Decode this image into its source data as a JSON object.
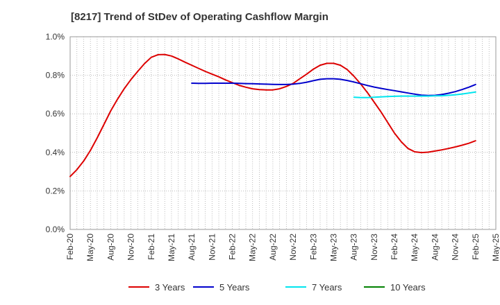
{
  "chart_data": {
    "type": "line",
    "title": "[8217]  Trend of StDev of Operating Cashflow Margin",
    "xlabel": "",
    "ylabel": "",
    "x_tick_labels": [
      "Feb-20",
      "May-20",
      "Aug-20",
      "Nov-20",
      "Feb-21",
      "May-21",
      "Aug-21",
      "Nov-21",
      "Feb-22",
      "May-22",
      "Aug-22",
      "Nov-22",
      "Feb-23",
      "May-23",
      "Aug-23",
      "Nov-23",
      "Feb-24",
      "May-24",
      "Aug-24",
      "Nov-24",
      "Feb-25",
      "May-25"
    ],
    "y_tick_labels": [
      "0.0%",
      "0.2%",
      "0.4%",
      "0.6%",
      "0.8%",
      "1.0%"
    ],
    "ylim": [
      0,
      1.0
    ],
    "y_unit": "%",
    "grid": true,
    "legend_position": "bottom",
    "series": [
      {
        "name": "3 Years",
        "color": "#dd0000",
        "x": [
          "Feb-20",
          "Mar-20",
          "Apr-20",
          "May-20",
          "Jun-20",
          "Jul-20",
          "Aug-20",
          "Sep-20",
          "Oct-20",
          "Nov-20",
          "Dec-20",
          "Jan-21",
          "Feb-21",
          "Mar-21",
          "Apr-21",
          "May-21",
          "Jun-21",
          "Jul-21",
          "Aug-21",
          "Sep-21",
          "Oct-21",
          "Nov-21",
          "Dec-21",
          "Jan-22",
          "Feb-22",
          "Mar-22",
          "Apr-22",
          "May-22",
          "Jun-22",
          "Jul-22",
          "Aug-22",
          "Sep-22",
          "Oct-22",
          "Nov-22",
          "Dec-22",
          "Jan-23",
          "Feb-23",
          "Mar-23",
          "Apr-23",
          "May-23",
          "Jun-23",
          "Jul-23",
          "Aug-23",
          "Sep-23",
          "Oct-23",
          "Nov-23",
          "Dec-23",
          "Jan-24",
          "Feb-24",
          "Mar-24",
          "Apr-24",
          "May-24",
          "Jun-24",
          "Jul-24",
          "Aug-24",
          "Sep-24",
          "Oct-24",
          "Nov-24",
          "Dec-24",
          "Jan-25",
          "Feb-25"
        ],
        "values": [
          0.275,
          0.31,
          0.355,
          0.41,
          0.475,
          0.545,
          0.615,
          0.675,
          0.73,
          0.778,
          0.82,
          0.86,
          0.893,
          0.907,
          0.908,
          0.9,
          0.885,
          0.868,
          0.852,
          0.836,
          0.82,
          0.806,
          0.792,
          0.776,
          0.762,
          0.748,
          0.738,
          0.73,
          0.726,
          0.724,
          0.724,
          0.73,
          0.742,
          0.758,
          0.782,
          0.806,
          0.832,
          0.852,
          0.862,
          0.862,
          0.852,
          0.83,
          0.795,
          0.755,
          0.71,
          0.66,
          0.61,
          0.555,
          0.5,
          0.455,
          0.42,
          0.403,
          0.399,
          0.401,
          0.407,
          0.413,
          0.42,
          0.428,
          0.437,
          0.447,
          0.46
        ]
      },
      {
        "name": "5 Years",
        "color": "#0000cc",
        "x": [
          "Aug-21",
          "Sep-21",
          "Oct-21",
          "Nov-21",
          "Dec-21",
          "Jan-22",
          "Feb-22",
          "Mar-22",
          "Apr-22",
          "May-22",
          "Jun-22",
          "Jul-22",
          "Aug-22",
          "Sep-22",
          "Oct-22",
          "Nov-22",
          "Dec-22",
          "Jan-23",
          "Feb-23",
          "Mar-23",
          "Apr-23",
          "May-23",
          "Jun-23",
          "Jul-23",
          "Aug-23",
          "Sep-23",
          "Oct-23",
          "Nov-23",
          "Dec-23",
          "Jan-24",
          "Feb-24",
          "Mar-24",
          "Apr-24",
          "May-24",
          "Jun-24",
          "Jul-24",
          "Aug-24",
          "Sep-24",
          "Oct-24",
          "Nov-24",
          "Dec-24",
          "Jan-25",
          "Feb-25"
        ],
        "values": [
          0.759,
          0.758,
          0.758,
          0.759,
          0.759,
          0.759,
          0.759,
          0.758,
          0.757,
          0.756,
          0.755,
          0.754,
          0.753,
          0.752,
          0.752,
          0.754,
          0.758,
          0.764,
          0.772,
          0.779,
          0.782,
          0.782,
          0.779,
          0.773,
          0.765,
          0.756,
          0.747,
          0.739,
          0.732,
          0.726,
          0.72,
          0.714,
          0.708,
          0.702,
          0.697,
          0.695,
          0.696,
          0.7,
          0.707,
          0.715,
          0.726,
          0.738,
          0.752
        ]
      },
      {
        "name": "7 Years",
        "color": "#00e5ee",
        "x": [
          "Aug-23",
          "Sep-23",
          "Oct-23",
          "Nov-23",
          "Dec-23",
          "Jan-24",
          "Feb-24",
          "Mar-24",
          "Apr-24",
          "May-24",
          "Jun-24",
          "Jul-24",
          "Aug-24",
          "Sep-24",
          "Oct-24",
          "Nov-24",
          "Dec-24",
          "Jan-25",
          "Feb-25"
        ],
        "values": [
          0.686,
          0.684,
          0.684,
          0.686,
          0.688,
          0.69,
          0.691,
          0.692,
          0.692,
          0.692,
          0.692,
          0.692,
          0.693,
          0.694,
          0.696,
          0.699,
          0.703,
          0.708,
          0.713
        ]
      },
      {
        "name": "10 Years",
        "color": "#008000",
        "x": [],
        "values": []
      }
    ]
  }
}
